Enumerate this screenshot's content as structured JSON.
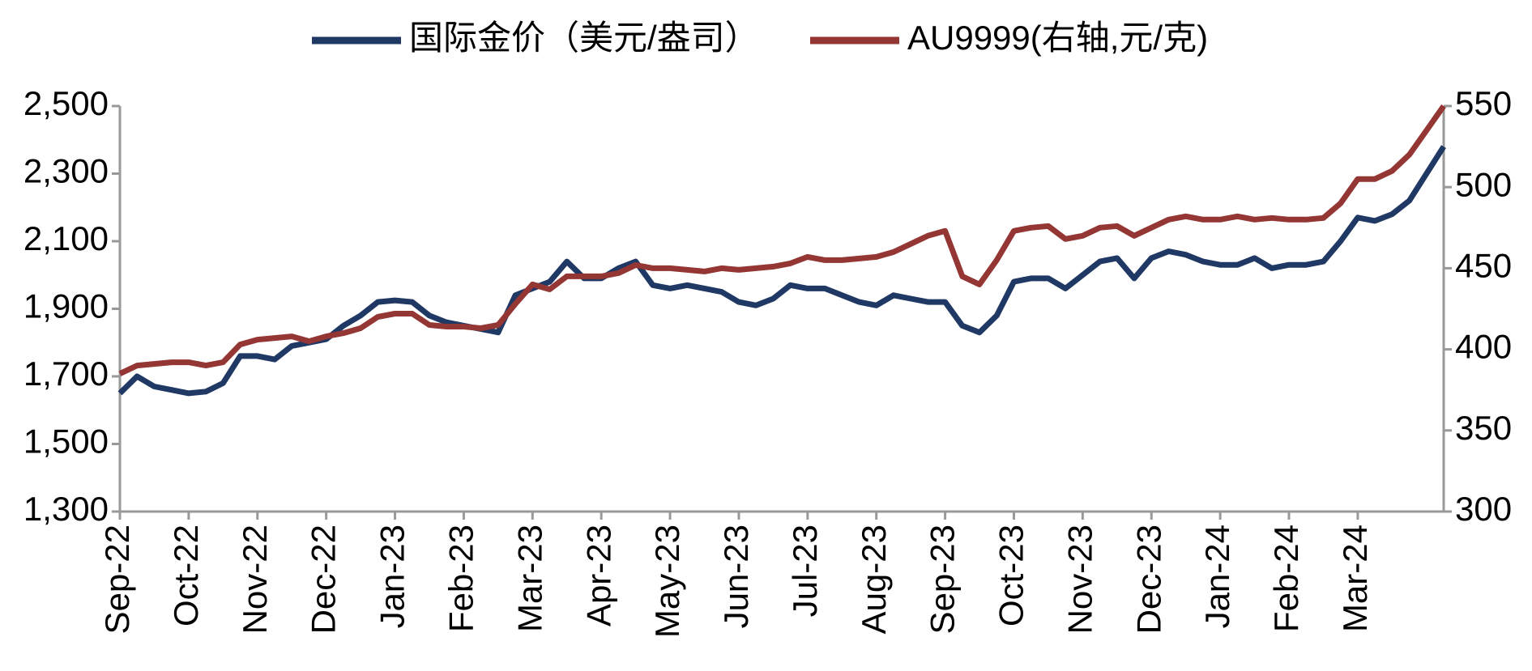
{
  "chart_data": {
    "type": "line",
    "categories": [
      "Sep-22",
      null,
      null,
      null,
      "Oct-22",
      null,
      null,
      null,
      "Nov-22",
      null,
      null,
      null,
      "Dec-22",
      null,
      null,
      null,
      "Jan-23",
      null,
      null,
      null,
      "Feb-23",
      null,
      null,
      null,
      "Mar-23",
      null,
      null,
      null,
      "Apr-23",
      null,
      null,
      null,
      "May-23",
      null,
      null,
      null,
      "Jun-23",
      null,
      null,
      null,
      "Jul-23",
      null,
      null,
      null,
      "Aug-23",
      null,
      null,
      null,
      "Sep-23",
      null,
      null,
      null,
      "Oct-23",
      null,
      null,
      null,
      "Nov-23",
      null,
      null,
      null,
      "Dec-23",
      null,
      null,
      null,
      "Jan-24",
      null,
      null,
      null,
      "Feb-24",
      null,
      null,
      null,
      "Mar-24",
      null,
      null,
      null,
      null,
      null
    ],
    "series": [
      {
        "name": "国际金价（美元/盎司）",
        "color": "#1f3864",
        "values": [
          1650,
          1700,
          1670,
          1660,
          1650,
          1655,
          1680,
          1760,
          1760,
          1750,
          1790,
          1800,
          1810,
          1850,
          1880,
          1920,
          1925,
          1920,
          1880,
          1860,
          1850,
          1840,
          1830,
          1940,
          1960,
          1980,
          2040,
          1990,
          1990,
          2020,
          2040,
          1970,
          1960,
          1970,
          1960,
          1950,
          1920,
          1910,
          1930,
          1970,
          1960,
          1960,
          1940,
          1920,
          1910,
          1940,
          1930,
          1920,
          1920,
          1850,
          1830,
          1880,
          1980,
          1990,
          1990,
          1960,
          2000,
          2040,
          2050,
          1990,
          2050,
          2070,
          2060,
          2040,
          2030,
          2030,
          2050,
          2020,
          2030,
          2030,
          2040,
          2100,
          2170,
          2160,
          2180,
          2220,
          2300,
          2380
        ]
      },
      {
        "name": "AU9999(右轴,元/克)",
        "color": "#943634",
        "axis": "y2",
        "values": [
          385,
          390,
          391,
          392,
          392,
          390,
          392,
          403,
          406,
          407,
          408,
          405,
          408,
          410,
          413,
          420,
          422,
          422,
          415,
          414,
          414,
          413,
          415,
          428,
          440,
          437,
          445,
          445,
          445,
          447,
          452,
          450,
          450,
          449,
          448,
          450,
          449,
          450,
          451,
          453,
          457,
          455,
          455,
          456,
          457,
          460,
          465,
          470,
          473,
          445,
          440,
          455,
          473,
          475,
          476,
          468,
          470,
          475,
          476,
          470,
          475,
          480,
          482,
          480,
          480,
          482,
          480,
          481,
          480,
          480,
          481,
          490,
          505,
          505,
          510,
          520,
          535,
          550
        ]
      }
    ],
    "ylim": [
      1300,
      2500
    ],
    "yticks": [
      {
        "value": 1300,
        "label": "1,300"
      },
      {
        "value": 1500,
        "label": "1,500"
      },
      {
        "value": 1700,
        "label": "1,700"
      },
      {
        "value": 1900,
        "label": "1,900"
      },
      {
        "value": 2100,
        "label": "2,100"
      },
      {
        "value": 2300,
        "label": "2,300"
      },
      {
        "value": 2500,
        "label": "2,500"
      }
    ],
    "y2lim": [
      300,
      550
    ],
    "y2ticks": [
      300,
      350,
      400,
      450,
      500,
      550
    ]
  }
}
